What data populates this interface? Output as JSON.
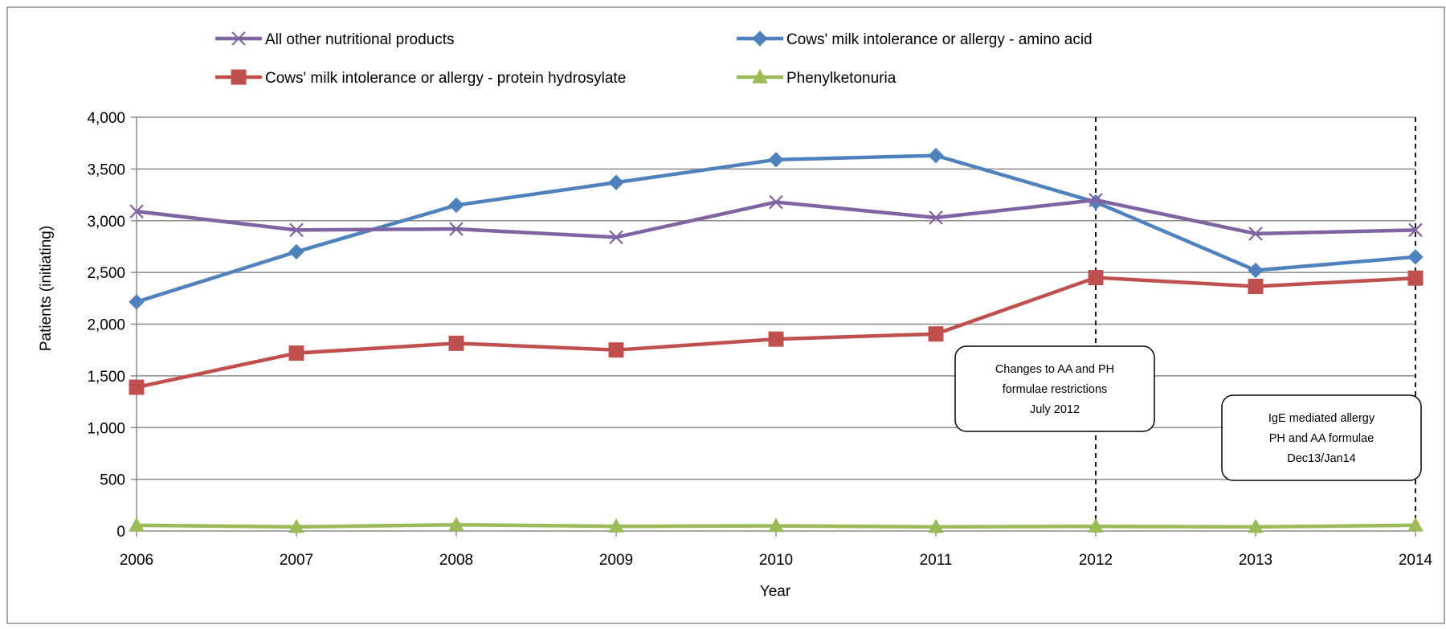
{
  "chart_data": {
    "type": "line",
    "x": [
      "2006",
      "2007",
      "2008",
      "2009",
      "2010",
      "2011",
      "2012",
      "2013",
      "2014"
    ],
    "xlabel": "Year",
    "ylabel": "Patients (initiating)",
    "ylim": [
      0,
      4000
    ],
    "yticks": [
      0,
      500,
      1000,
      1500,
      2000,
      2500,
      3000,
      3500,
      4000
    ],
    "ytick_labels": [
      "0",
      "500",
      "1,000",
      "1,500",
      "2,000",
      "2,500",
      "3,000",
      "3,500",
      "4,000"
    ],
    "grid": "horizontal",
    "legend_position": "top",
    "series": [
      {
        "name": "All other nutritional products",
        "color": "#8064A2",
        "marker": "x-cross",
        "values": [
          3090,
          2910,
          2920,
          2840,
          3180,
          3030,
          3200,
          2875,
          2910
        ]
      },
      {
        "name": "Cows' milk intolerance or allergy - amino acid",
        "color": "#4F81BD",
        "marker": "diamond",
        "values": [
          2215,
          2700,
          3150,
          3370,
          3590,
          3630,
          3180,
          2520,
          2650
        ]
      },
      {
        "name": "Cows' milk intolerance or allergy - protein hydrosylate",
        "color": "#C0504D",
        "marker": "square",
        "values": [
          1390,
          1720,
          1815,
          1750,
          1855,
          1905,
          2450,
          2365,
          2445
        ]
      },
      {
        "name": "Phenylketonuria",
        "color": "#9BBB59",
        "marker": "triangle",
        "values": [
          55,
          40,
          60,
          45,
          50,
          40,
          45,
          40,
          55
        ]
      }
    ],
    "reference_lines": [
      {
        "x": "2012",
        "style": "dashed"
      },
      {
        "x": "2014",
        "style": "dashed"
      }
    ],
    "annotations": [
      {
        "lines": [
          "Changes to AA and PH",
          "formulae restrictions",
          "July 2012"
        ]
      },
      {
        "lines": [
          "IgE mediated allergy",
          "PH and AA formulae",
          "Dec13/Jan14"
        ]
      }
    ]
  }
}
